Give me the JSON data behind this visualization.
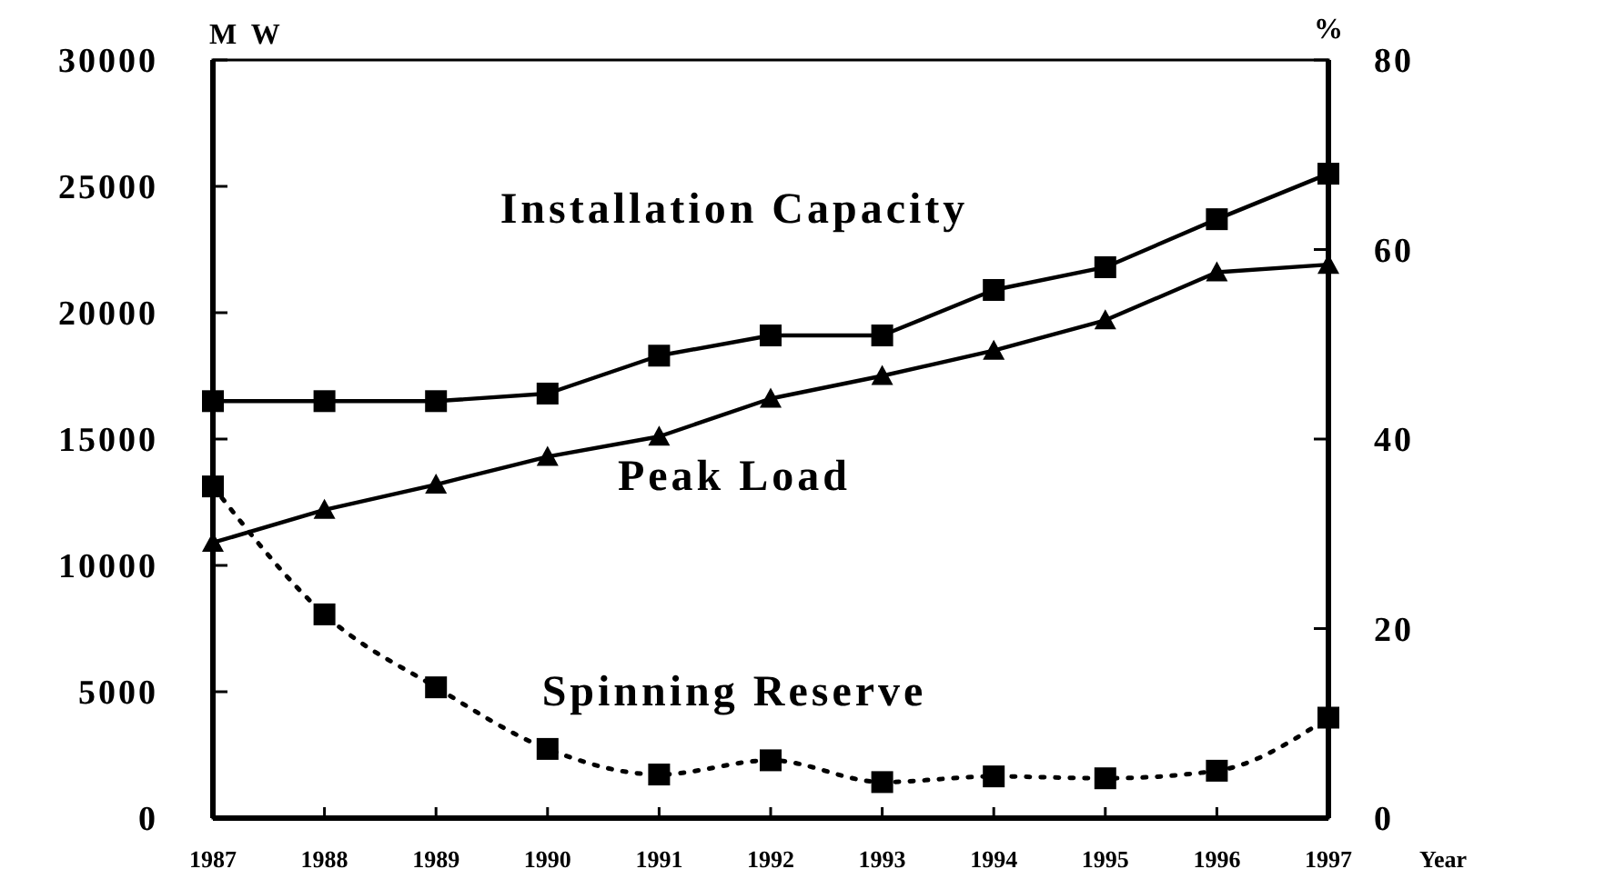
{
  "chart_data": {
    "type": "line",
    "xlabel": "Year",
    "ylabel": "M W",
    "y2label": "%",
    "x": [
      1987,
      1988,
      1989,
      1990,
      1991,
      1992,
      1993,
      1994,
      1995,
      1996,
      1997
    ],
    "xlim": [
      1987,
      1997
    ],
    "xticks": [
      1987,
      1988,
      1989,
      1990,
      1991,
      1992,
      1993,
      1994,
      1995,
      1996,
      1997
    ],
    "ylim": [
      0,
      30000
    ],
    "yticks": [
      0,
      5000,
      10000,
      15000,
      20000,
      25000,
      30000
    ],
    "y2lim": [
      0,
      80
    ],
    "y2ticks": [
      0,
      20,
      40,
      60,
      80
    ],
    "series": [
      {
        "name": "Installation Capacity",
        "color": "#000000",
        "marker": "square",
        "line_style": "solid",
        "values": [
          16500,
          16500,
          16500,
          16800,
          18300,
          19100,
          19100,
          20900,
          21800,
          23700,
          25500
        ]
      },
      {
        "name": "Peak Load",
        "color": "#000000",
        "marker": "triangle",
        "line_style": "solid",
        "values": [
          10900,
          12200,
          13200,
          14300,
          15100,
          16600,
          17500,
          18500,
          19700,
          21600,
          21900
        ]
      },
      {
        "name": "Spinning Reserve",
        "color": "#000000",
        "marker": "square",
        "line_style": "dotted",
        "axis": "y2",
        "values": [
          35,
          21.5,
          13.8,
          7.3,
          4.6,
          6.1,
          3.8,
          4.4,
          4.2,
          5,
          10.6
        ]
      }
    ],
    "grid": false
  }
}
